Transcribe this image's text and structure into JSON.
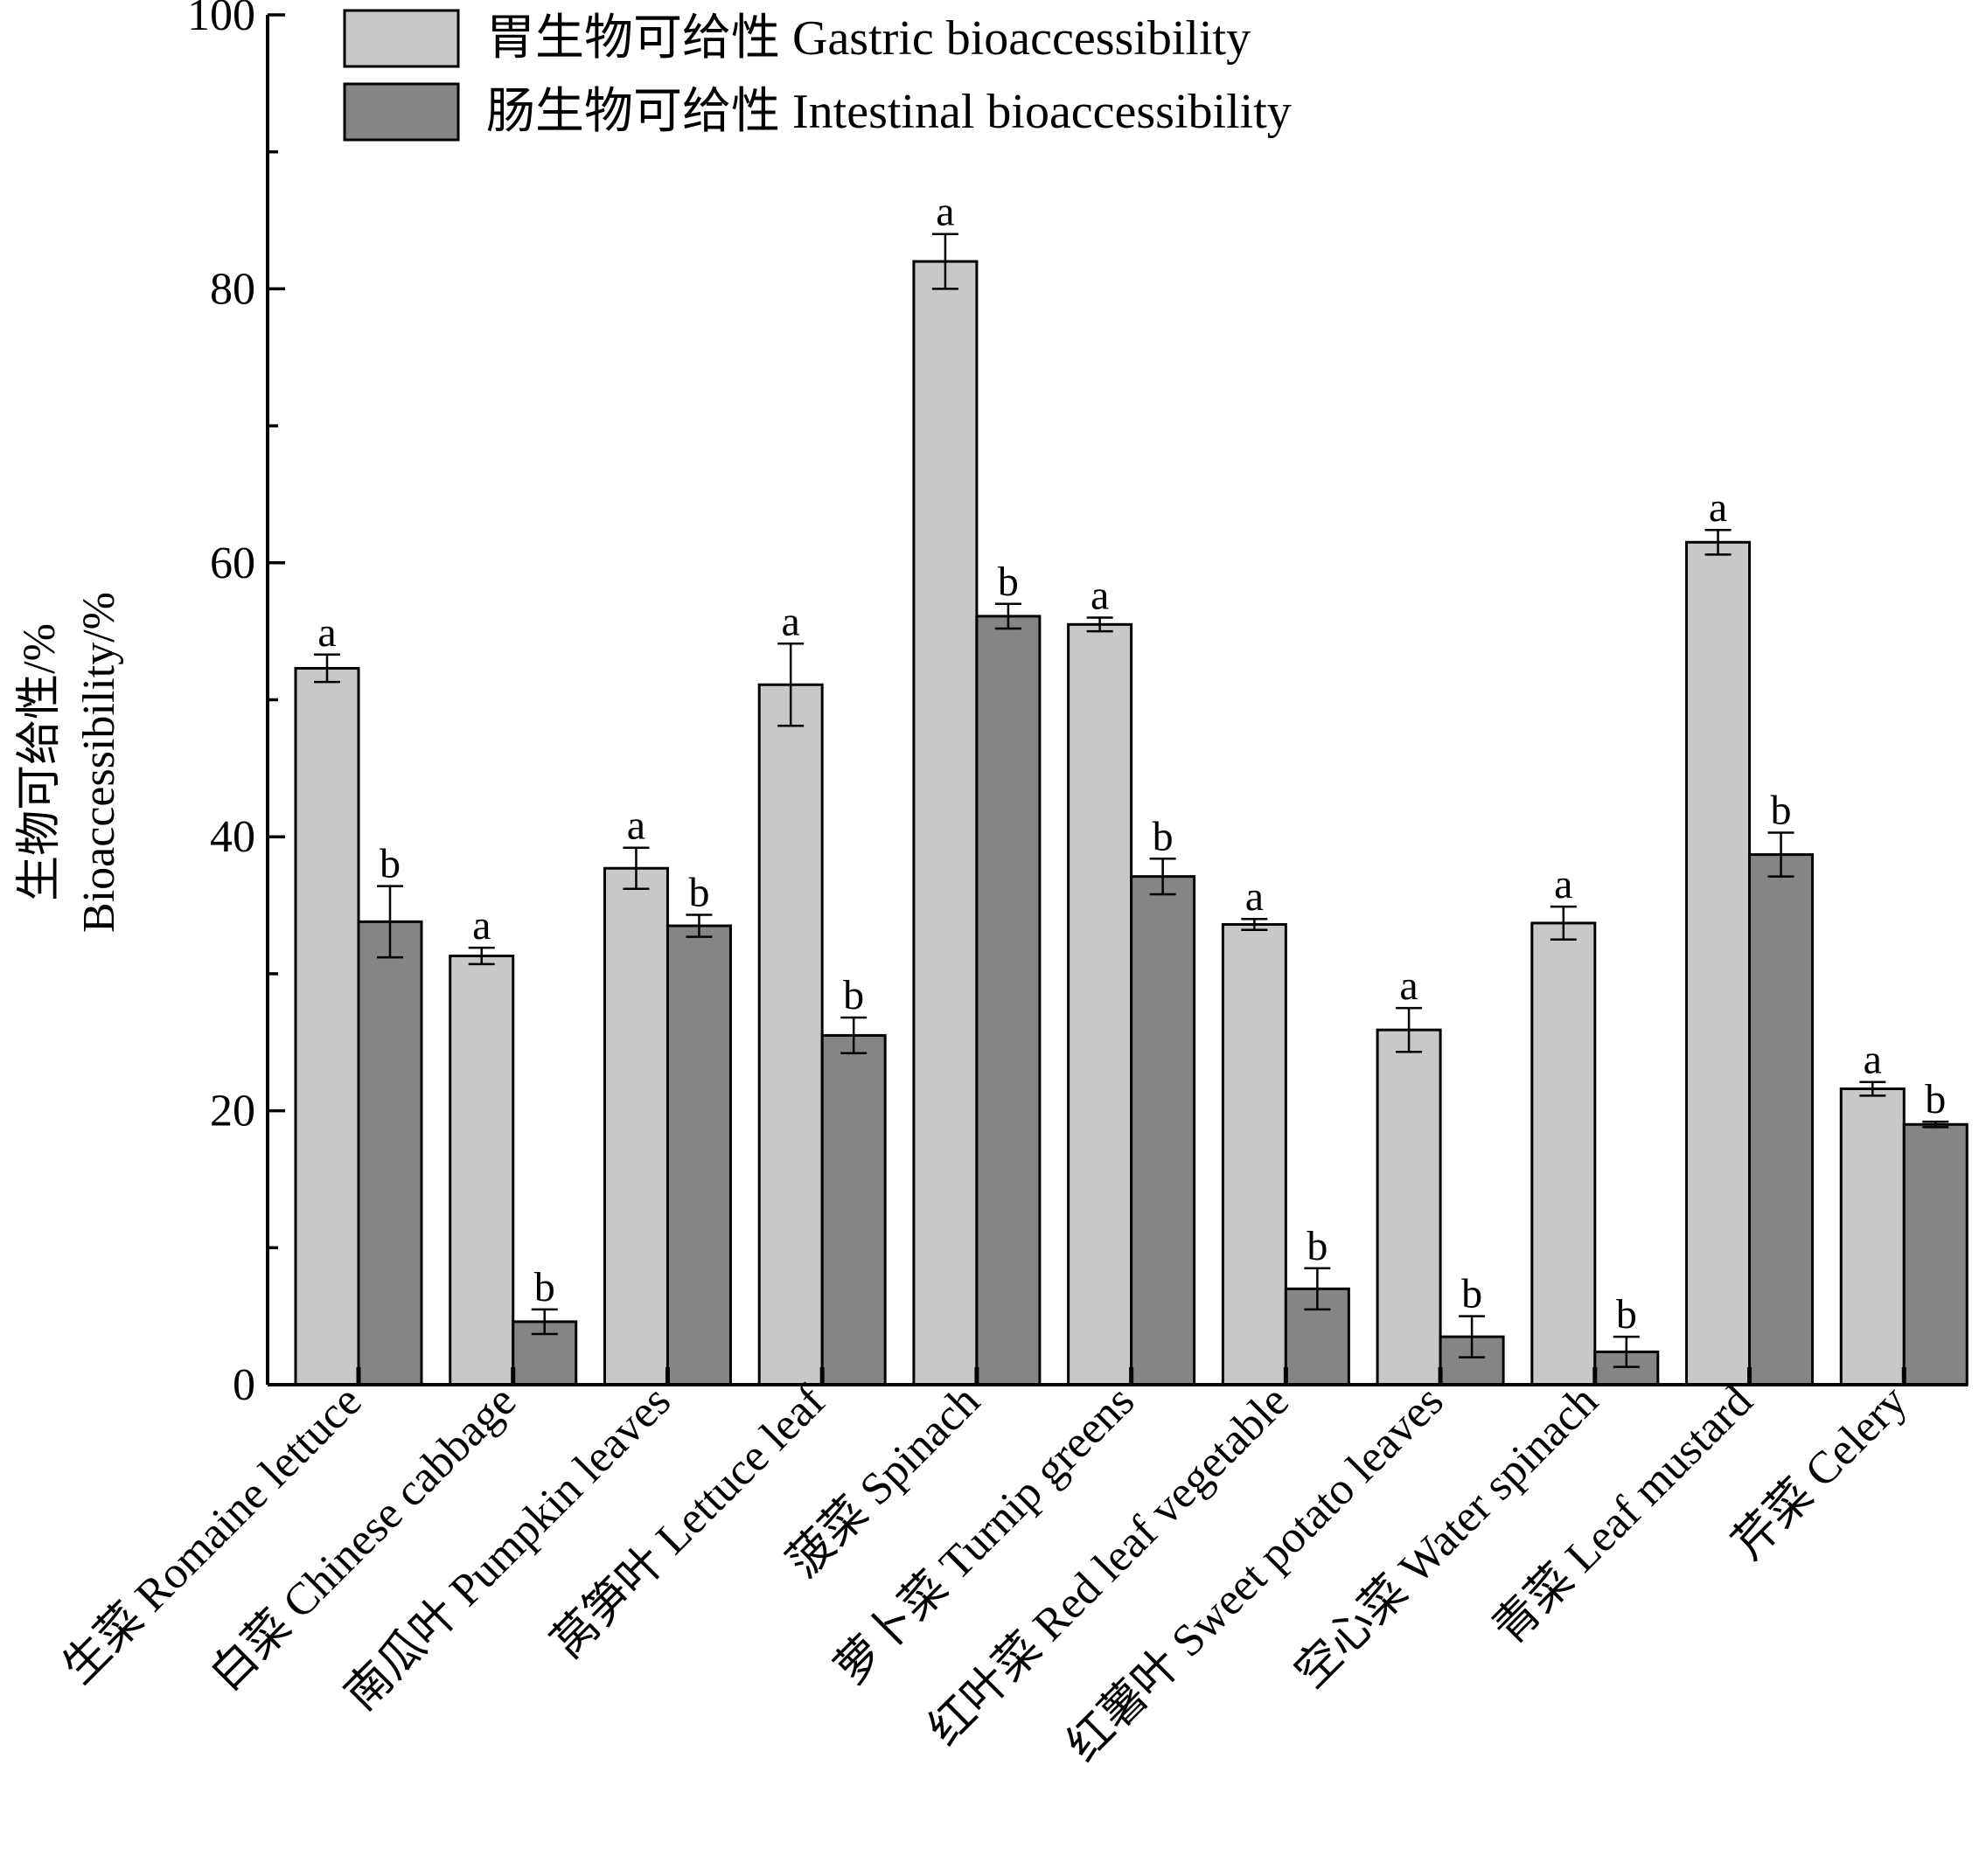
{
  "chart_data": {
    "type": "bar",
    "title": "",
    "ylabel_cn": "生物可给性/%",
    "ylabel_en": "Bioaccessibility/%",
    "ylim": [
      0,
      100
    ],
    "yticks": [
      0,
      20,
      40,
      60,
      80,
      100
    ],
    "legend_position": "top-left",
    "categories": [
      "生菜 Romaine lettuce",
      "白菜 Chinese cabbage",
      "南瓜叶 Pumpkin leaves",
      "莴笋叶 Lettuce leaf",
      "菠菜 Spinach",
      "萝卜菜 Turnip greens",
      "红叶菜 Red leaf vegetable",
      "红薯叶 Sweet potato leaves",
      "空心菜 Water spinach",
      "青菜 Leaf mustard",
      "芹菜 Celery"
    ],
    "series": [
      {
        "name": "胃生物可给性 Gastric bioaccessibility",
        "color": "#c8c8c8",
        "values": [
          52.3,
          31.3,
          37.7,
          51.1,
          82.0,
          55.5,
          33.6,
          25.9,
          33.7,
          61.5,
          21.6
        ],
        "errors": [
          1.0,
          0.6,
          1.5,
          3.0,
          2.0,
          0.5,
          0.4,
          1.6,
          1.2,
          0.9,
          0.5
        ],
        "labels": [
          "a",
          "a",
          "a",
          "a",
          "a",
          "a",
          "a",
          "a",
          "a",
          "a",
          "a"
        ]
      },
      {
        "name": "肠生物可给性 Intestinal bioaccessibility",
        "color": "#858585",
        "values": [
          33.8,
          4.6,
          33.5,
          25.5,
          56.1,
          37.1,
          7.0,
          3.5,
          2.4,
          38.7,
          19.0
        ],
        "errors": [
          2.6,
          0.9,
          0.8,
          1.3,
          0.9,
          1.3,
          1.5,
          1.5,
          1.1,
          1.6,
          0.2
        ],
        "labels": [
          "b",
          "b",
          "b",
          "b",
          "b",
          "b",
          "b",
          "b",
          "b",
          "b",
          "b"
        ]
      }
    ]
  }
}
